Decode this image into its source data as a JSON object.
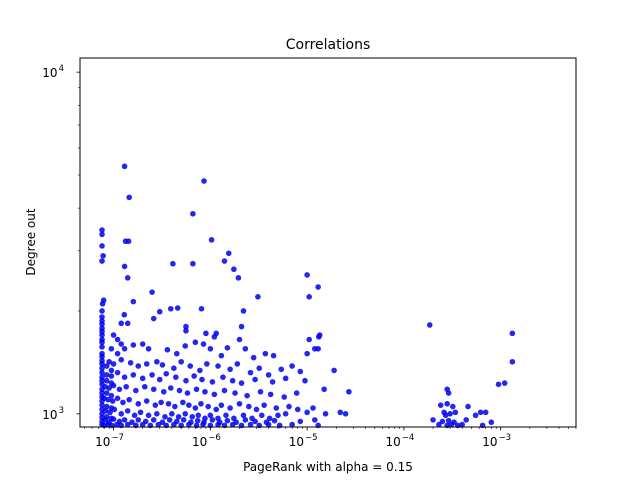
{
  "chart_data": {
    "type": "scatter",
    "title": "Correlations",
    "xlabel": "PageRank with alpha = 0.15",
    "ylabel": "Degree out",
    "xscale": "log",
    "yscale": "log",
    "xlim": [
      4.5e-08,
      0.006
    ],
    "ylim": [
      915,
      11000
    ],
    "grid": false,
    "marker_color": "#0000ee",
    "x_ticks": [
      {
        "value": 1e-07,
        "base": "10",
        "exp": "−7"
      },
      {
        "value": 1e-06,
        "base": "10",
        "exp": "−6"
      },
      {
        "value": 1e-05,
        "base": "10",
        "exp": "−5"
      },
      {
        "value": 0.0001,
        "base": "10",
        "exp": "−4"
      },
      {
        "value": 0.001,
        "base": "10",
        "exp": "−3"
      }
    ],
    "y_ticks": [
      {
        "value": 1000,
        "base": "10",
        "exp": "3"
      },
      {
        "value": 10000,
        "base": "10",
        "exp": "4"
      }
    ],
    "points": [
      [
        1.3e-07,
        5300
      ],
      [
        1.45e-07,
        4300
      ],
      [
        8.6e-07,
        4800
      ],
      [
        6.6e-07,
        3850
      ],
      [
        1.03e-06,
        3230
      ],
      [
        7.6e-08,
        3450
      ],
      [
        7.6e-08,
        3350
      ],
      [
        7.6e-08,
        3100
      ],
      [
        1.33e-07,
        3200
      ],
      [
        1.43e-07,
        3200
      ],
      [
        7.8e-08,
        2900
      ],
      [
        7.6e-08,
        2800
      ],
      [
        1.3e-07,
        2700
      ],
      [
        1.4e-07,
        2500
      ],
      [
        4.1e-07,
        2750
      ],
      [
        6.6e-07,
        2750
      ],
      [
        1.4e-06,
        2800
      ],
      [
        1.55e-06,
        2950
      ],
      [
        1.75e-06,
        2650
      ],
      [
        1.95e-06,
        2500
      ],
      [
        1e-05,
        2550
      ],
      [
        1.3e-05,
        2350
      ],
      [
        1.05e-05,
        2200
      ],
      [
        3.1e-06,
        2200
      ],
      [
        2.2e-06,
        2000
      ],
      [
        8.1e-07,
        2030
      ],
      [
        1.6e-07,
        2130
      ],
      [
        2.5e-07,
        2270
      ],
      [
        3.9e-07,
        2030
      ],
      [
        4.6e-07,
        2040
      ],
      [
        7.9e-08,
        2150
      ],
      [
        7.7e-08,
        2100
      ],
      [
        1.29e-07,
        1950
      ],
      [
        3e-07,
        1990
      ],
      [
        7.6e-08,
        1920
      ],
      [
        7.6e-08,
        1870
      ],
      [
        1.2e-07,
        1840
      ],
      [
        1.4e-07,
        1840
      ],
      [
        2.6e-07,
        1900
      ],
      [
        0.000185,
        1820
      ],
      [
        0.00132,
        1720
      ],
      [
        1.35e-05,
        1700
      ],
      [
        1.32e-05,
        1680
      ],
      [
        5.6e-07,
        1800
      ],
      [
        5.6e-07,
        1750
      ],
      [
        9e-07,
        1720
      ],
      [
        1.15e-06,
        1720
      ],
      [
        2.1e-06,
        1800
      ],
      [
        1.1e-06,
        1680
      ],
      [
        2e-06,
        1650
      ],
      [
        7.6e-08,
        1780
      ],
      [
        7.6e-08,
        1700
      ],
      [
        1e-07,
        1700
      ],
      [
        1.1e-07,
        1650
      ],
      [
        1.2e-07,
        1600
      ],
      [
        1.05e-05,
        1650
      ],
      [
        1.2e-05,
        1550
      ],
      [
        1.3e-05,
        1550
      ],
      [
        1e-05,
        1500
      ],
      [
        0.00132,
        1420
      ],
      [
        7.6e-08,
        1620
      ],
      [
        7.6e-08,
        1570
      ],
      [
        9.5e-08,
        1550
      ],
      [
        1.1e-07,
        1500
      ],
      [
        1.3e-07,
        1550
      ],
      [
        1.6e-07,
        1590
      ],
      [
        2e-07,
        1600
      ],
      [
        2.3e-07,
        1550
      ],
      [
        3.6e-07,
        1540
      ],
      [
        4.5e-07,
        1500
      ],
      [
        5.5e-07,
        1580
      ],
      [
        7e-07,
        1620
      ],
      [
        8.5e-07,
        1600
      ],
      [
        1e-06,
        1550
      ],
      [
        1.3e-06,
        1480
      ],
      [
        1.5e-06,
        1560
      ],
      [
        2.3e-06,
        1550
      ],
      [
        2.8e-06,
        1460
      ],
      [
        3.7e-06,
        1500
      ],
      [
        4.5e-06,
        1480
      ],
      [
        7.6e-08,
        1470
      ],
      [
        7.6e-08,
        1430
      ],
      [
        9e-08,
        1420
      ],
      [
        1e-07,
        1400
      ],
      [
        1.2e-07,
        1440
      ],
      [
        1.5e-07,
        1410
      ],
      [
        1.8e-07,
        1380
      ],
      [
        2.2e-07,
        1400
      ],
      [
        2.8e-07,
        1420
      ],
      [
        3.2e-07,
        1390
      ],
      [
        4.2e-07,
        1360
      ],
      [
        5e-07,
        1420
      ],
      [
        6.2e-07,
        1380
      ],
      [
        7.8e-07,
        1340
      ],
      [
        9.2e-07,
        1400
      ],
      [
        1.2e-06,
        1380
      ],
      [
        1.6e-06,
        1350
      ],
      [
        1.9e-06,
        1400
      ],
      [
        2.6e-06,
        1320
      ],
      [
        3.2e-06,
        1360
      ],
      [
        4e-06,
        1300
      ],
      [
        5.4e-06,
        1350
      ],
      [
        7e-06,
        1380
      ],
      [
        8.5e-06,
        1330
      ],
      [
        1.9e-05,
        1340
      ],
      [
        7.6e-08,
        1360
      ],
      [
        7.6e-08,
        1320
      ],
      [
        8.5e-08,
        1300
      ],
      [
        9.5e-08,
        1290
      ],
      [
        1.1e-07,
        1320
      ],
      [
        1.3e-07,
        1280
      ],
      [
        1.6e-07,
        1300
      ],
      [
        2e-07,
        1270
      ],
      [
        2.5e-07,
        1300
      ],
      [
        3e-07,
        1260
      ],
      [
        3.5e-07,
        1310
      ],
      [
        4.4e-07,
        1280
      ],
      [
        5.6e-07,
        1250
      ],
      [
        6.8e-07,
        1290
      ],
      [
        8.2e-07,
        1260
      ],
      [
        1.05e-06,
        1240
      ],
      [
        1.35e-06,
        1280
      ],
      [
        1.7e-06,
        1250
      ],
      [
        2.1e-06,
        1230
      ],
      [
        2.9e-06,
        1260
      ],
      [
        4.4e-06,
        1240
      ],
      [
        6e-06,
        1270
      ],
      [
        9.5e-06,
        1250
      ],
      [
        0.00095,
        1220
      ],
      [
        0.0011,
        1230
      ],
      [
        7.6e-08,
        1250
      ],
      [
        7.6e-08,
        1220
      ],
      [
        8.2e-08,
        1200
      ],
      [
        9e-08,
        1190
      ],
      [
        1e-07,
        1210
      ],
      [
        1.15e-07,
        1180
      ],
      [
        1.35e-07,
        1200
      ],
      [
        1.7e-07,
        1170
      ],
      [
        2.1e-07,
        1200
      ],
      [
        2.6e-07,
        1180
      ],
      [
        3.3e-07,
        1160
      ],
      [
        3.9e-07,
        1190
      ],
      [
        4.8e-07,
        1170
      ],
      [
        5.8e-07,
        1150
      ],
      [
        7.2e-07,
        1180
      ],
      [
        8.8e-07,
        1160
      ],
      [
        1.1e-06,
        1140
      ],
      [
        1.4e-06,
        1170
      ],
      [
        1.8e-06,
        1150
      ],
      [
        2.4e-06,
        1130
      ],
      [
        3.3e-06,
        1160
      ],
      [
        4.2e-06,
        1140
      ],
      [
        5.8e-06,
        1120
      ],
      [
        7.8e-06,
        1150
      ],
      [
        1.5e-05,
        1180
      ],
      [
        2.7e-05,
        1160
      ],
      [
        0.00028,
        1180
      ],
      [
        0.00029,
        1150
      ],
      [
        7.6e-08,
        1150
      ],
      [
        7.6e-08,
        1120
      ],
      [
        8e-08,
        1110
      ],
      [
        8.8e-08,
        1100
      ],
      [
        9.8e-08,
        1090
      ],
      [
        1.1e-07,
        1110
      ],
      [
        1.25e-07,
        1080
      ],
      [
        1.45e-07,
        1100
      ],
      [
        1.8e-07,
        1070
      ],
      [
        2.2e-07,
        1090
      ],
      [
        2.7e-07,
        1060
      ],
      [
        3.1e-07,
        1080
      ],
      [
        3.7e-07,
        1070
      ],
      [
        4.3e-07,
        1050
      ],
      [
        5.2e-07,
        1080
      ],
      [
        6e-07,
        1060
      ],
      [
        7e-07,
        1040
      ],
      [
        8e-07,
        1070
      ],
      [
        9.5e-07,
        1050
      ],
      [
        1.15e-06,
        1030
      ],
      [
        1.3e-06,
        1060
      ],
      [
        1.6e-06,
        1040
      ],
      [
        2e-06,
        1070
      ],
      [
        2.5e-06,
        1050
      ],
      [
        3e-06,
        1030
      ],
      [
        3.6e-06,
        1060
      ],
      [
        4.8e-06,
        1040
      ],
      [
        6.5e-06,
        1050
      ],
      [
        8e-06,
        1030
      ],
      [
        1.15e-05,
        1040
      ],
      [
        0.00046,
        1050
      ],
      [
        0.00024,
        1060
      ],
      [
        0.00028,
        1070
      ],
      [
        0.00032,
        1050
      ],
      [
        7.6e-08,
        1060
      ],
      [
        7.6e-08,
        1030
      ],
      [
        8.3e-08,
        1020
      ],
      [
        9.2e-08,
        1010
      ],
      [
        1.02e-07,
        1030
      ],
      [
        1.2e-07,
        1000
      ],
      [
        1.4e-07,
        1020
      ],
      [
        1.65e-07,
        990
      ],
      [
        1.9e-07,
        1010
      ],
      [
        2.3e-07,
        990
      ],
      [
        2.8e-07,
        1000
      ],
      [
        3.4e-07,
        980
      ],
      [
        4e-07,
        1000
      ],
      [
        4.7e-07,
        980
      ],
      [
        5.5e-07,
        1000
      ],
      [
        6.5e-07,
        980
      ],
      [
        7.5e-07,
        990
      ],
      [
        8.8e-07,
        970
      ],
      [
        1e-06,
        990
      ],
      [
        1.2e-06,
        970
      ],
      [
        1.45e-06,
        990
      ],
      [
        1.75e-06,
        970
      ],
      [
        2.2e-06,
        990
      ],
      [
        2.7e-06,
        970
      ],
      [
        3.4e-06,
        990
      ],
      [
        4.1e-06,
        970
      ],
      [
        5e-06,
        990
      ],
      [
        6e-06,
        1000
      ],
      [
        1e-05,
        1010
      ],
      [
        1.55e-05,
        1000
      ],
      [
        2.2e-05,
        1010
      ],
      [
        2.5e-05,
        1000
      ],
      [
        0.00026,
        1010
      ],
      [
        0.00027,
        990
      ],
      [
        0.0003,
        1000
      ],
      [
        0.00034,
        1010
      ],
      [
        0.00055,
        990
      ],
      [
        0.00062,
        1010
      ],
      [
        0.0007,
        1010
      ],
      [
        7.6e-08,
        975
      ],
      [
        7.6e-08,
        950
      ],
      [
        8.2e-08,
        960
      ],
      [
        9e-08,
        945
      ],
      [
        1e-07,
        965
      ],
      [
        1.15e-07,
        950
      ],
      [
        1.3e-07,
        960
      ],
      [
        1.55e-07,
        945
      ],
      [
        1.8e-07,
        960
      ],
      [
        2.15e-07,
        950
      ],
      [
        2.6e-07,
        960
      ],
      [
        3.2e-07,
        945
      ],
      [
        3.8e-07,
        960
      ],
      [
        4.5e-07,
        950
      ],
      [
        5.3e-07,
        960
      ],
      [
        6.3e-07,
        945
      ],
      [
        7.4e-07,
        955
      ],
      [
        8.6e-07,
        945
      ],
      [
        1.05e-06,
        960
      ],
      [
        1.25e-06,
        945
      ],
      [
        1.5e-06,
        955
      ],
      [
        1.85e-06,
        945
      ],
      [
        2.3e-06,
        960
      ],
      [
        2.9e-06,
        950
      ],
      [
        3.8e-06,
        945
      ],
      [
        4.6e-06,
        955
      ],
      [
        8.5e-06,
        950
      ],
      [
        1.2e-05,
        960
      ],
      [
        0.0002,
        960
      ],
      [
        0.00025,
        950
      ],
      [
        0.00029,
        955
      ],
      [
        0.00033,
        945
      ],
      [
        0.00044,
        960
      ],
      [
        0.0008,
        945
      ],
      [
        7.6e-08,
        930
      ],
      [
        8e-08,
        925
      ],
      [
        8.8e-08,
        930
      ],
      [
        9.6e-08,
        925
      ],
      [
        1.08e-07,
        930
      ],
      [
        1.2e-07,
        925
      ],
      [
        1.4e-07,
        930
      ],
      [
        1.7e-07,
        925
      ],
      [
        2e-07,
        930
      ],
      [
        2.4e-07,
        925
      ],
      [
        2.9e-07,
        930
      ],
      [
        3.5e-07,
        925
      ],
      [
        4.2e-07,
        930
      ],
      [
        5e-07,
        925
      ],
      [
        6e-07,
        930
      ],
      [
        7.2e-07,
        925
      ],
      [
        8.4e-07,
        930
      ],
      [
        1e-06,
        925
      ],
      [
        1.2e-06,
        930
      ],
      [
        1.4e-06,
        925
      ],
      [
        1.7e-06,
        930
      ],
      [
        2.1e-06,
        925
      ],
      [
        2.6e-06,
        930
      ],
      [
        3.2e-06,
        925
      ],
      [
        4e-06,
        930
      ],
      [
        5.2e-06,
        925
      ],
      [
        7e-06,
        930
      ],
      [
        1.3e-05,
        925
      ],
      [
        0.00023,
        930
      ],
      [
        0.00028,
        925
      ],
      [
        0.00031,
        930
      ],
      [
        0.00036,
        925
      ],
      [
        0.0004,
        930
      ],
      [
        0.00065,
        925
      ],
      [
        7.6e-08,
        1400
      ],
      [
        7.6e-08,
        1500
      ],
      [
        7.6e-08,
        1280
      ],
      [
        7.6e-08,
        1180
      ],
      [
        7.6e-08,
        1090
      ],
      [
        7.6e-08,
        1000
      ],
      [
        7.6e-08,
        1650
      ],
      [
        7.6e-08,
        1740
      ],
      [
        7.6e-08,
        1830
      ],
      [
        7.6e-08,
        2000
      ],
      [
        8.5e-08,
        1380
      ],
      [
        8.5e-08,
        1250
      ],
      [
        8.5e-08,
        1150
      ],
      [
        8.5e-08,
        1050
      ],
      [
        8.5e-08,
        980
      ],
      [
        9.5e-08,
        1340
      ],
      [
        9.5e-08,
        1230
      ],
      [
        9.5e-08,
        1130
      ],
      [
        9.5e-08,
        1040
      ],
      [
        9.5e-08,
        970
      ]
    ]
  }
}
